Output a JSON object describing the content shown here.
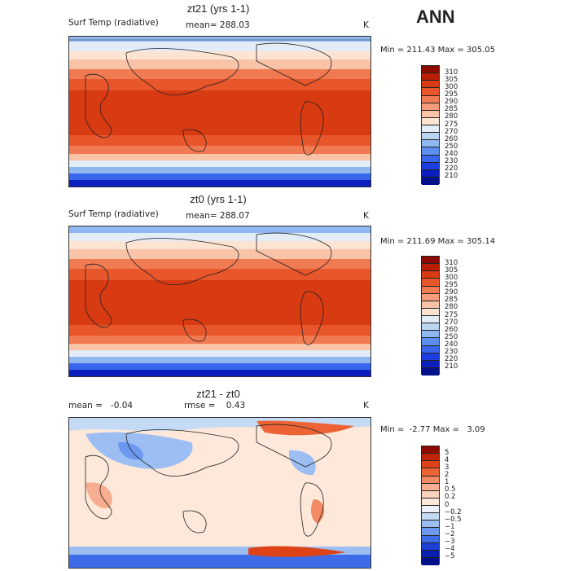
{
  "header": {
    "season": "ANN"
  },
  "chart_data": [
    {
      "type": "heatmap",
      "title": "zt21 (yrs 1-1)",
      "variable": "Surf Temp (radiative)",
      "mean_label": "mean= 288.03",
      "units": "K",
      "min": 211.43,
      "max": 305.05,
      "minmax_text": "Min = 211.43 Max = 305.05",
      "levels": [
        "310",
        "305",
        "300",
        "295",
        "290",
        "285",
        "280",
        "275",
        "270",
        "260",
        "250",
        "240",
        "230",
        "220",
        "210"
      ],
      "colors": [
        "#8c0a00",
        "#b91e05",
        "#d83a12",
        "#e8562b",
        "#f07a52",
        "#f59c7c",
        "#f9c3a8",
        "#fde4d2",
        "#e2edf8",
        "#bad4f2",
        "#8fb7f0",
        "#5c8ff0",
        "#3765eb",
        "#1c3ee0",
        "#0a1fbd",
        "#04108a"
      ]
    },
    {
      "type": "heatmap",
      "title": "zt0 (yrs 1-1)",
      "variable": "Surf Temp (radiative)",
      "mean_label": "mean= 288.07",
      "units": "K",
      "min": 211.69,
      "max": 305.14,
      "minmax_text": "Min = 211.69 Max = 305.14",
      "levels": [
        "310",
        "305",
        "300",
        "295",
        "290",
        "285",
        "280",
        "275",
        "270",
        "260",
        "250",
        "240",
        "230",
        "220",
        "210"
      ],
      "colors": [
        "#8c0a00",
        "#b91e05",
        "#d83a12",
        "#e8562b",
        "#f07a52",
        "#f59c7c",
        "#f9c3a8",
        "#fde4d2",
        "#e2edf8",
        "#bad4f2",
        "#8fb7f0",
        "#5c8ff0",
        "#3765eb",
        "#1c3ee0",
        "#0a1fbd",
        "#04108a"
      ]
    },
    {
      "type": "heatmap",
      "title": "zt21 - zt0",
      "mean_label": "mean =   -0.04",
      "rmse_label": "rmse =    0.43",
      "units": "K",
      "min": -2.77,
      "max": 3.09,
      "minmax_text": "Min =  -2.77 Max =   3.09",
      "levels": [
        "5",
        "4",
        "3",
        "2",
        "1",
        "0.5",
        "0.2",
        "0",
        "−0.2",
        "−0.5",
        "−1",
        "−2",
        "−3",
        "−4",
        "−5"
      ],
      "colors": [
        "#8c0a00",
        "#c02408",
        "#de4318",
        "#ec6436",
        "#f38a63",
        "#f7ad8f",
        "#fbd2bc",
        "#fde8da",
        "#eef3fb",
        "#c5daf5",
        "#9cbef2",
        "#6c98ef",
        "#3e6be8",
        "#1d40d8",
        "#0b1fae",
        "#04108a"
      ]
    }
  ]
}
